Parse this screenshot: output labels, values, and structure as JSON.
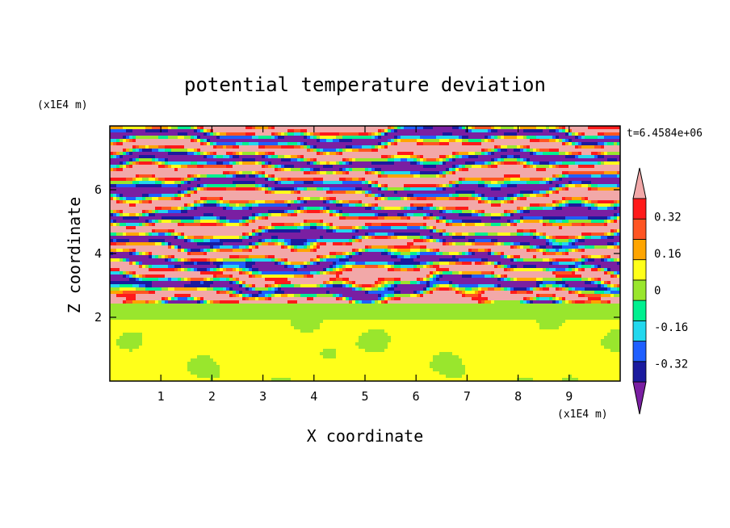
{
  "chart_data": {
    "type": "heatmap",
    "title": "potential temperature deviation",
    "xlabel": "X coordinate",
    "ylabel": "Z coordinate",
    "x_scale_label": "(x1E4 m)",
    "y_scale_label": "(x1E4 m)",
    "time_label": "t=6.4584e+06",
    "xlim": [
      0,
      10
    ],
    "ylim": [
      0,
      8
    ],
    "x_ticks": [
      1,
      2,
      3,
      4,
      5,
      6,
      7,
      8,
      9
    ],
    "y_ticks": [
      2,
      4,
      6
    ],
    "x_tick_labels": [
      "1",
      "2",
      "3",
      "4",
      "5",
      "6",
      "7",
      "8",
      "9"
    ],
    "y_tick_labels": [
      "2",
      "4",
      "6"
    ],
    "colorbar": {
      "levels": [
        -0.4,
        -0.32,
        -0.24,
        -0.16,
        -0.08,
        0,
        0.08,
        0.16,
        0.24,
        0.32,
        0.4
      ],
      "tick_values": [
        -0.32,
        -0.16,
        0,
        0.16,
        0.32
      ],
      "tick_labels": [
        "-0.32",
        "-0.16",
        "0",
        "0.16",
        "0.32"
      ],
      "colors": [
        "#7a1fa2",
        "#1a1a9e",
        "#1f5fff",
        "#22d8ee",
        "#00f090",
        "#99e62d",
        "#ffff1a",
        "#ffa500",
        "#ff5522",
        "#ff1a1a",
        "#f2a8a8"
      ],
      "extend": "both"
    },
    "field_description_regions": [
      {
        "z_range": [
          0,
          2.0
        ],
        "values": [
          0.0,
          0.04
        ]
      },
      {
        "z_range": [
          2.0,
          2.5
        ],
        "values": [
          -0.02,
          0.0
        ]
      },
      {
        "z_range": [
          2.5,
          4.5
        ],
        "values": [
          -0.4,
          0.4
        ]
      },
      {
        "z_range": [
          4.5,
          8.0
        ],
        "values": [
          -0.4,
          0.4
        ]
      }
    ]
  }
}
